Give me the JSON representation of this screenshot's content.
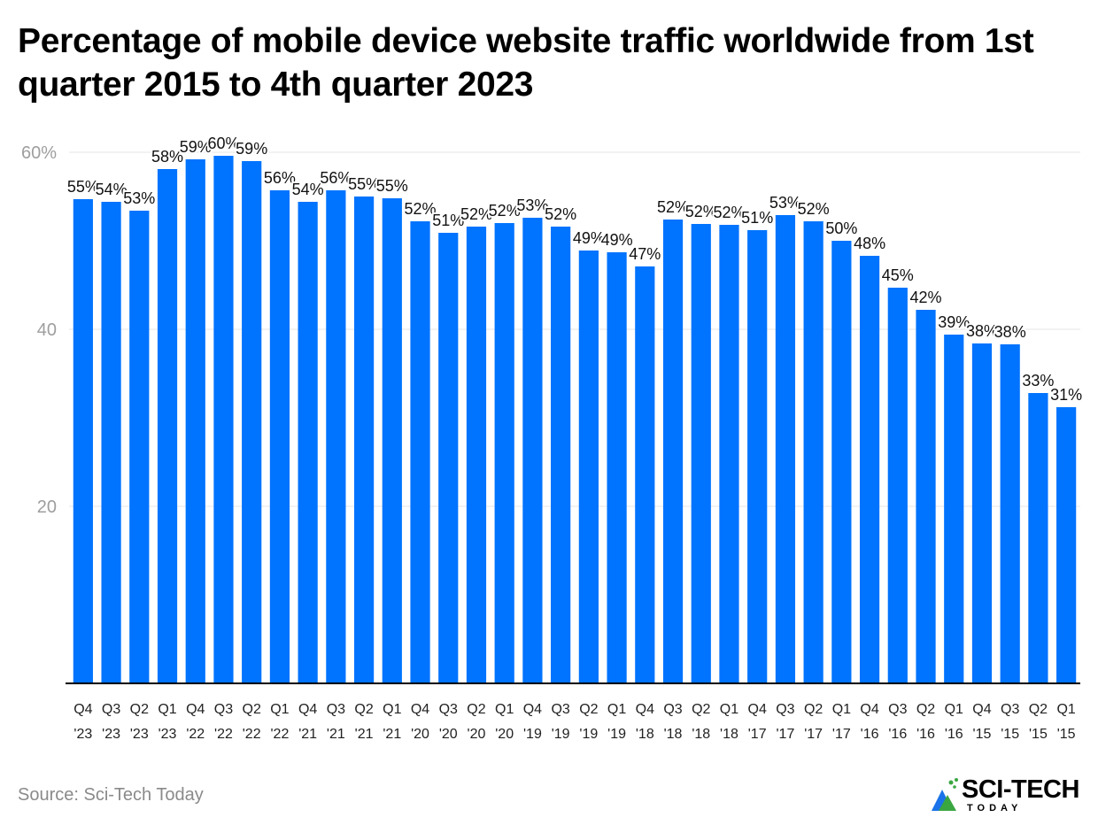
{
  "title": "Percentage of mobile device website traffic worldwide from 1st quarter 2015 to 4th quarter 2023",
  "source": "Source: Sci-Tech Today",
  "logo": {
    "name": "SCI-TECH",
    "sub": "TODAY"
  },
  "colors": {
    "bar": "#0073ff",
    "grid": "#e6e6e6",
    "axis": "#000000",
    "muted": "#9e9e9e",
    "logo_green": "#3aa640",
    "logo_blue": "#1a73e8"
  },
  "chart_data": {
    "type": "bar",
    "title": "Percentage of mobile device website traffic worldwide from 1st quarter 2015 to 4th quarter 2023",
    "xlabel": "",
    "ylabel": "",
    "ylim": [
      0,
      60
    ],
    "yticks": [
      20,
      40,
      60
    ],
    "ytick_labels": [
      "20",
      "40",
      "60%"
    ],
    "grid": true,
    "categories": [
      "Q4 '23",
      "Q3 '23",
      "Q2 '23",
      "Q1 '23",
      "Q4 '22",
      "Q3 '22",
      "Q2 '22",
      "Q1 '22",
      "Q4 '21",
      "Q3 '21",
      "Q2 '21",
      "Q1 '21",
      "Q4 '20",
      "Q3 '20",
      "Q2 '20",
      "Q1 '20",
      "Q4 '19",
      "Q3 '19",
      "Q2 '19",
      "Q1 '19",
      "Q4 '18",
      "Q3 '18",
      "Q2 '18",
      "Q1 '18",
      "Q4 '17",
      "Q3 '17",
      "Q2 '17",
      "Q1 '17",
      "Q4 '16",
      "Q3 '16",
      "Q2 '16",
      "Q1 '16",
      "Q4 '15",
      "Q3 '15",
      "Q2 '15",
      "Q1 '15"
    ],
    "values": [
      54.7,
      54.4,
      53.4,
      58.1,
      59.2,
      59.6,
      59.0,
      55.7,
      54.4,
      55.7,
      55.0,
      54.8,
      52.2,
      50.9,
      51.6,
      52.0,
      52.6,
      51.6,
      48.9,
      48.7,
      47.1,
      52.4,
      51.9,
      51.8,
      51.2,
      52.9,
      52.2,
      50.0,
      48.3,
      44.7,
      42.2,
      39.4,
      38.4,
      38.3,
      32.8,
      31.2
    ],
    "data_labels": [
      "55%",
      "54%",
      "53%",
      "58%",
      "59%",
      "60%",
      "59%",
      "56%",
      "54%",
      "56%",
      "55%",
      "55%",
      "52%",
      "51%",
      "52%",
      "52%",
      "53%",
      "52%",
      "49%",
      "49%",
      "47%",
      "52%",
      "52%",
      "52%",
      "51%",
      "53%",
      "52%",
      "50%",
      "48%",
      "45%",
      "42%",
      "39%",
      "38%",
      "38%",
      "33%",
      "31%"
    ]
  }
}
